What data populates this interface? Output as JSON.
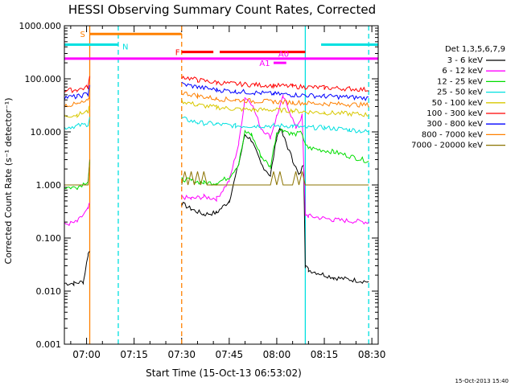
{
  "chart_data": {
    "type": "line",
    "title": "HESSI Observing Summary Count Rates, Corrected",
    "xlabel": "Start Time (15-Oct-13 06:53:02)",
    "ylabel": "Corrected Count Rate (s⁻¹ detector⁻¹)",
    "footer": "15-Oct-2013 15:40",
    "x_unit": "minutes after 06:53:02",
    "xlim": [
      0,
      99
    ],
    "ylim": [
      0.001,
      1000
    ],
    "y_scale": "log",
    "x_ticks": [
      {
        "v": 7,
        "label": "07:00"
      },
      {
        "v": 22,
        "label": "07:15"
      },
      {
        "v": 37,
        "label": "07:30"
      },
      {
        "v": 52,
        "label": "07:45"
      },
      {
        "v": 67,
        "label": "08:00"
      },
      {
        "v": 82,
        "label": "08:15"
      },
      {
        "v": 97,
        "label": "08:30"
      }
    ],
    "y_ticks": [
      {
        "v": 0.001,
        "label": "0.001"
      },
      {
        "v": 0.01,
        "label": "0.010"
      },
      {
        "v": 0.1,
        "label": "0.100"
      },
      {
        "v": 1,
        "label": "1.000"
      },
      {
        "v": 10,
        "label": "10.000"
      },
      {
        "v": 100,
        "label": "100.000"
      },
      {
        "v": 1000,
        "label": "1000.000"
      }
    ],
    "legend": {
      "title": "Det 1,3,5,6,7,9",
      "position": "right",
      "entries": [
        {
          "label": "3 - 6 keV",
          "color": "#000000"
        },
        {
          "label": "6 - 12 keV",
          "color": "#ff00ff"
        },
        {
          "label": "12 - 25 keV",
          "color": "#00dd00"
        },
        {
          "label": "25 - 50 keV",
          "color": "#00e0e0"
        },
        {
          "label": "50 - 100 keV",
          "color": "#d8c800"
        },
        {
          "label": "100 - 300 keV",
          "color": "#ff0000"
        },
        {
          "label": "300 - 800 keV",
          "color": "#0000ff"
        },
        {
          "label": "800 - 7000 keV",
          "color": "#ff8000"
        },
        {
          "label": "7000 - 20000 keV",
          "color": "#8b7300"
        }
      ]
    },
    "flag_bars": [
      {
        "label": "S",
        "color": "#ff8000",
        "y": 700,
        "segments": [
          [
            8,
            37
          ]
        ]
      },
      {
        "label": "N",
        "color": "#00e0e0",
        "y": 440,
        "segments": [
          [
            0,
            17
          ],
          [
            81,
            99
          ]
        ]
      },
      {
        "label": "F",
        "color": "#ff0000",
        "y": 320,
        "segments": [
          [
            37,
            47
          ],
          [
            49,
            76
          ]
        ]
      },
      {
        "label": "A0",
        "color": "#ff00ff",
        "y": 300,
        "segments": []
      },
      {
        "label": "A1",
        "color": "#ff00ff",
        "y": 200,
        "segments": [
          [
            66,
            70
          ]
        ]
      },
      {
        "label": "",
        "color": "#ff00ff",
        "y": 240,
        "segments": [
          [
            0,
            99
          ]
        ]
      }
    ],
    "vertical_markers": [
      {
        "x": 8,
        "color": "#ff8000",
        "style": "solid"
      },
      {
        "x": 17,
        "color": "#00e0e0",
        "style": "dashed"
      },
      {
        "x": 37,
        "color": "#ff8000",
        "style": "dashed"
      },
      {
        "x": 76,
        "color": "#00e0e0",
        "style": "solid"
      },
      {
        "x": 96,
        "color": "#00e0e0",
        "style": "dashed"
      }
    ],
    "data_gaps": [
      [
        8,
        37
      ]
    ],
    "series": [
      {
        "name": "3 - 6 keV",
        "color": "#000000",
        "x": [
          0,
          3,
          6,
          7.5,
          8,
          37,
          40,
          44,
          48,
          52,
          55,
          57,
          59,
          62,
          65,
          67,
          68,
          70,
          72,
          74,
          75.5,
          76,
          77,
          85,
          96
        ],
        "y": [
          0.014,
          0.014,
          0.015,
          0.05,
          0.06,
          0.45,
          0.35,
          0.28,
          0.3,
          0.5,
          2.5,
          9,
          7,
          2.5,
          1.5,
          8,
          12,
          6,
          3,
          1.5,
          2.5,
          0.03,
          0.025,
          0.018,
          0.015
        ]
      },
      {
        "name": "6 - 12 keV",
        "color": "#ff00ff",
        "x": [
          0,
          4,
          7.5,
          8,
          37,
          40,
          44,
          48,
          52,
          55,
          57,
          59,
          62,
          65,
          67,
          69,
          71,
          73,
          75,
          76,
          77,
          85,
          96
        ],
        "y": [
          0.18,
          0.2,
          0.35,
          0.45,
          0.6,
          0.55,
          0.6,
          0.55,
          1.2,
          6,
          45,
          35,
          12,
          8,
          20,
          45,
          25,
          12,
          20,
          0.28,
          0.26,
          0.22,
          0.2
        ]
      },
      {
        "name": "12 - 25 keV",
        "color": "#00dd00",
        "x": [
          0,
          4,
          7.5,
          8,
          37,
          40,
          44,
          48,
          52,
          55,
          57,
          59,
          62,
          65,
          67,
          69,
          72,
          75,
          76,
          77,
          85,
          96
        ],
        "y": [
          0.9,
          0.9,
          1.2,
          2.5,
          1.3,
          1.2,
          1.1,
          1.1,
          1.4,
          2.5,
          10,
          9,
          3.5,
          2.2,
          10,
          11,
          9,
          9.5,
          5.5,
          5.0,
          4.2,
          2.8
        ]
      },
      {
        "name": "25 - 50 keV",
        "color": "#00e0e0",
        "x": [
          0,
          4,
          7.5,
          8,
          37,
          42,
          48,
          54,
          60,
          66,
          72,
          76,
          82,
          90,
          96
        ],
        "y": [
          12,
          13,
          14,
          18,
          18,
          15,
          14,
          13,
          13,
          13,
          13,
          12,
          12,
          11,
          10
        ]
      },
      {
        "name": "50 - 100 keV",
        "color": "#d8c800",
        "x": [
          0,
          4,
          7.5,
          8,
          37,
          42,
          48,
          54,
          60,
          66,
          72,
          76,
          82,
          90,
          96
        ],
        "y": [
          20,
          21,
          24,
          30,
          38,
          32,
          29,
          27,
          26,
          26,
          25,
          24,
          23,
          22,
          21
        ]
      },
      {
        "name": "100 - 300 keV",
        "color": "#ff0000",
        "x": [
          0,
          4,
          7.5,
          8,
          37,
          42,
          48,
          54,
          60,
          66,
          72,
          76,
          82,
          90,
          96
        ],
        "y": [
          60,
          62,
          70,
          110,
          110,
          95,
          85,
          80,
          77,
          75,
          72,
          70,
          68,
          65,
          62
        ]
      },
      {
        "name": "300 - 800 keV",
        "color": "#0000ff",
        "x": [
          0,
          4,
          7.5,
          8,
          37,
          42,
          48,
          54,
          60,
          66,
          72,
          76,
          82,
          90,
          96
        ],
        "y": [
          45,
          46,
          52,
          80,
          80,
          70,
          62,
          58,
          55,
          52,
          50,
          49,
          47,
          45,
          43
        ]
      },
      {
        "name": "800 - 7000 keV",
        "color": "#ff8000",
        "x": [
          0,
          4,
          7.5,
          8,
          37,
          42,
          48,
          54,
          60,
          66,
          72,
          76,
          82,
          90,
          96
        ],
        "y": [
          32,
          33,
          38,
          55,
          55,
          48,
          42,
          40,
          38,
          37,
          36,
          35,
          34,
          33,
          32
        ]
      },
      {
        "name": "7000 - 20000 keV",
        "color": "#8b7300",
        "x": [
          0,
          5,
          7.5,
          8,
          37,
          38,
          39,
          40,
          41,
          42,
          43,
          44,
          45,
          50,
          60,
          65,
          66,
          67,
          68,
          69,
          72,
          73,
          74,
          75,
          76,
          77,
          85,
          96
        ],
        "y": [
          1.0,
          1.0,
          1.0,
          3.0,
          1.0,
          1.8,
          1.0,
          1.8,
          1.0,
          1.8,
          1.0,
          1.8,
          1.0,
          1.0,
          1.0,
          1.0,
          1.8,
          1.0,
          1.8,
          1.0,
          1.0,
          1.8,
          1.0,
          1.8,
          1.0,
          1.0,
          1.0,
          1.0
        ]
      }
    ]
  }
}
